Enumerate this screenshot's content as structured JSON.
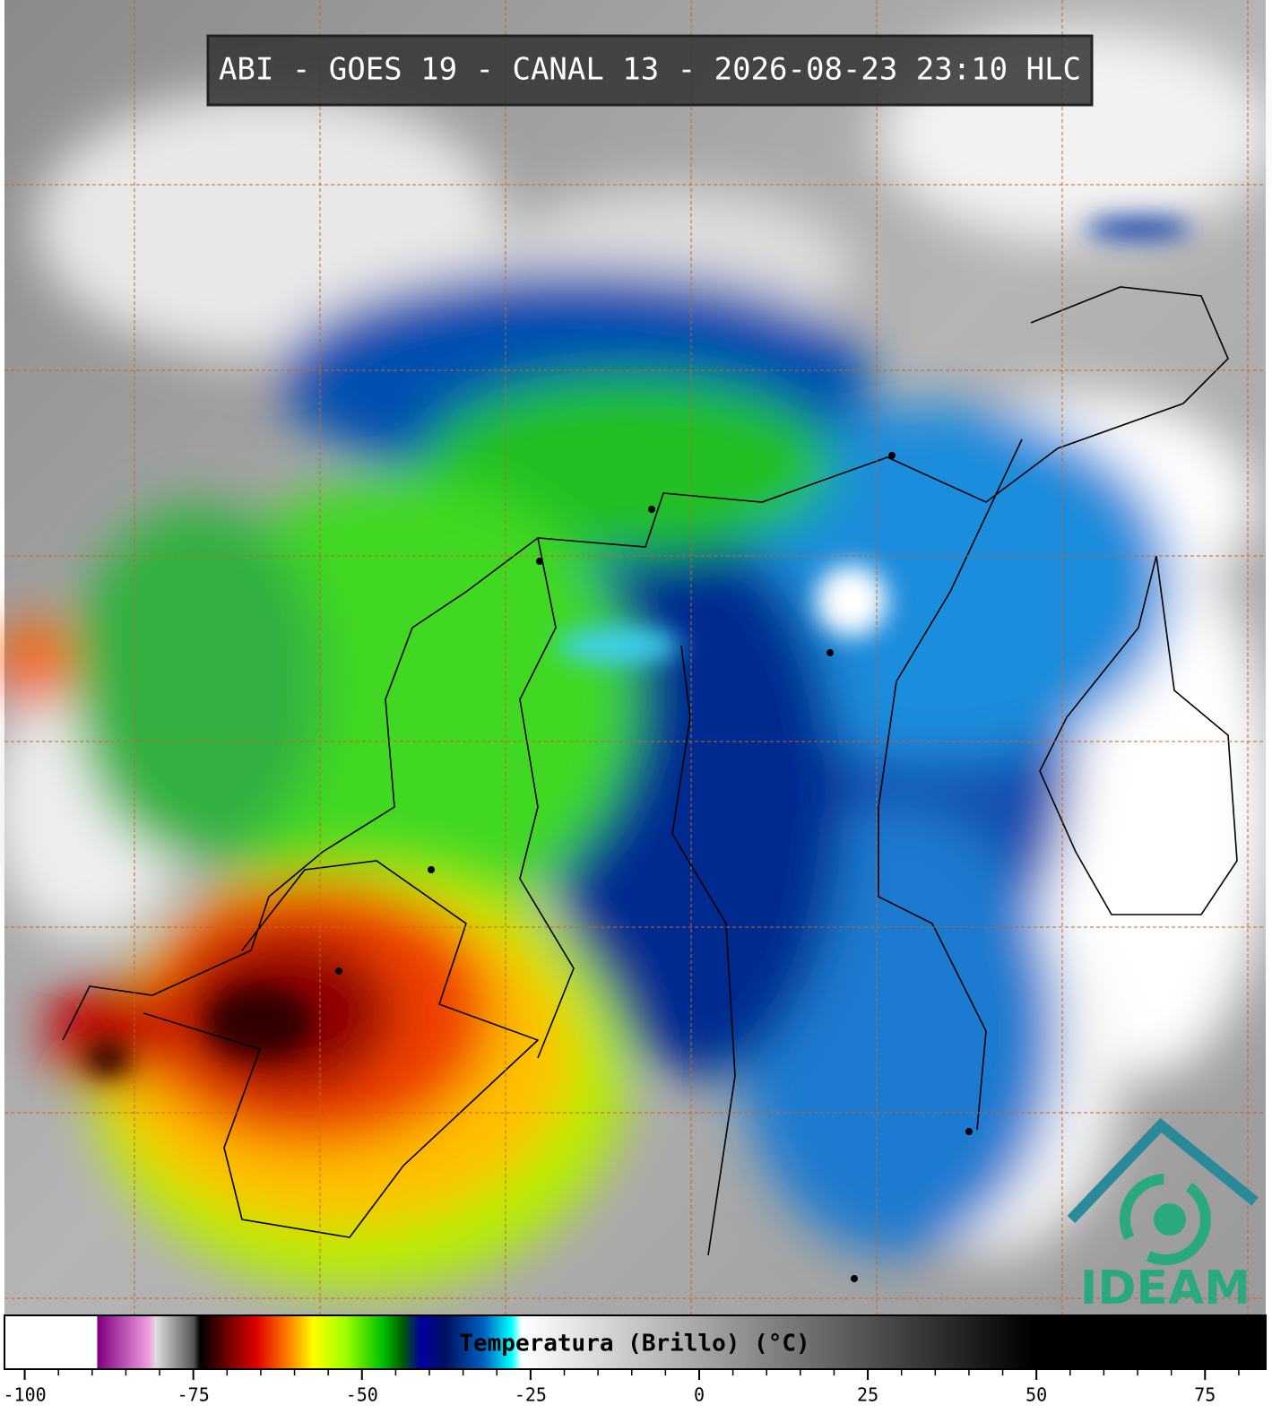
{
  "title": "ABI - GOES 19 - CANAL 13 - 2026-08-23 23:10 HLC",
  "colorbar": {
    "label": "Temperatura (Brillo) (°C)",
    "xlim": [
      -103,
      84
    ],
    "xticks": [
      -100,
      -75,
      -50,
      -25,
      0,
      25,
      50,
      75
    ],
    "minor_xticks": [
      -95,
      -90,
      -85,
      -80,
      -70,
      -65,
      -60,
      -55,
      -45,
      -40,
      -35,
      -30,
      -20,
      -15,
      -10,
      -5,
      5,
      10,
      15,
      20,
      30,
      35,
      40,
      45,
      55,
      60,
      65,
      70,
      80
    ]
  },
  "logo": "IDEAM"
}
